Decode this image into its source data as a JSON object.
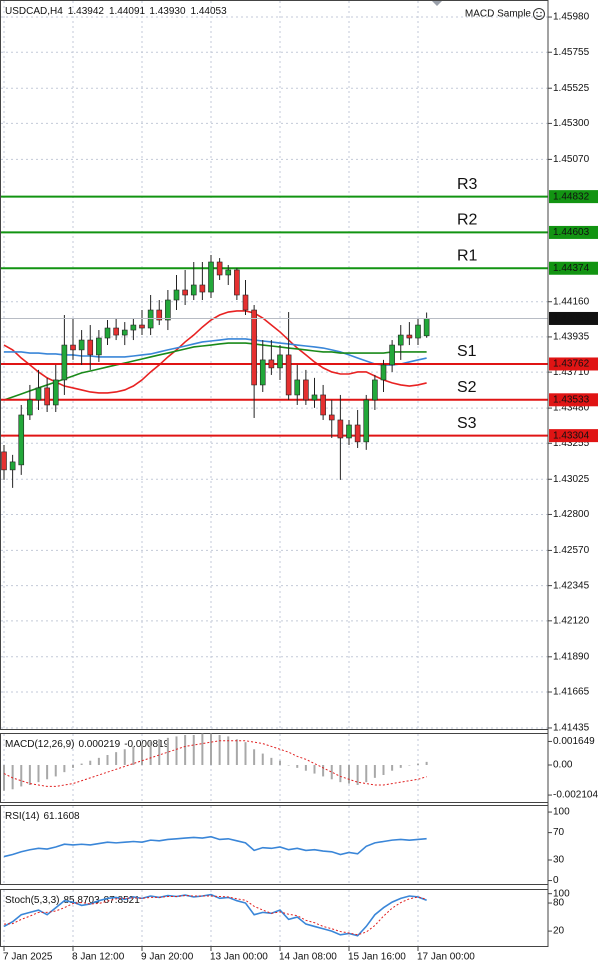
{
  "chart_data": [
    {
      "type": "candlestick",
      "title": "USDCAD,H4",
      "quote": [
        "1.43942",
        "1.44091",
        "1.43930",
        "1.44053"
      ],
      "indicator": "MACD Sample",
      "x": [
        "7 Jan 2025",
        null,
        null,
        null,
        null,
        null,
        null,
        null,
        "8 Jan 12:00",
        null,
        null,
        null,
        null,
        null,
        null,
        null,
        "9 Jan 20:00",
        null,
        null,
        null,
        null,
        null,
        null,
        null,
        "13 Jan 00:00",
        null,
        null,
        null,
        null,
        null,
        null,
        null,
        "14 Jan 08:00",
        null,
        null,
        null,
        null,
        null,
        null,
        null,
        "15 Jan 16:00",
        null,
        null,
        null,
        null,
        null,
        null,
        null,
        "17 Jan 00:00",
        null
      ],
      "open": [
        1.432,
        1.43085,
        1.43117,
        1.43436,
        1.43532,
        1.43609,
        1.435,
        1.4366,
        1.43883,
        1.43852,
        1.43915,
        1.4382,
        1.43928,
        1.43992,
        1.43947,
        1.43979,
        1.44011,
        1.43992,
        1.44107,
        1.44043,
        1.44171,
        1.44235,
        1.44203,
        1.44267,
        1.44222,
        1.44414,
        1.44331,
        1.44363,
        1.44203,
        1.44107,
        1.43628,
        1.43788,
        1.43737,
        1.4382,
        1.43564,
        1.4366,
        1.43532,
        1.43564,
        1.43436,
        1.43404,
        1.43289,
        1.43372,
        1.43264,
        1.43532,
        1.4366,
        1.43756,
        1.43883,
        1.43947,
        1.43928,
        1.43942
      ],
      "high": [
        1.43244,
        1.43181,
        1.435,
        1.43628,
        1.43724,
        1.43673,
        1.43756,
        1.44075,
        1.44056,
        1.43979,
        1.44011,
        1.43979,
        1.44043,
        1.44056,
        1.4403,
        1.44056,
        1.44107,
        1.44203,
        1.44171,
        1.44235,
        1.44331,
        1.44363,
        1.44414,
        1.44414,
        1.44459,
        1.44439,
        1.44395,
        1.44376,
        1.44299,
        1.44139,
        1.43915,
        1.43915,
        1.43883,
        1.44094,
        1.43756,
        1.43724,
        1.43673,
        1.43628,
        1.43532,
        1.43564,
        1.43404,
        1.43468,
        1.43564,
        1.43692,
        1.43788,
        1.43915,
        1.44011,
        1.4403,
        1.44056,
        1.44091
      ],
      "low": [
        1.43021,
        1.4297,
        1.43053,
        1.43404,
        1.43468,
        1.43455,
        1.43455,
        1.43564,
        1.43788,
        1.43756,
        1.43724,
        1.43775,
        1.43883,
        1.43915,
        1.43883,
        1.43915,
        1.43947,
        1.43947,
        1.44011,
        1.43979,
        1.44107,
        1.44139,
        1.44171,
        1.44171,
        1.44184,
        1.44299,
        1.44267,
        1.44171,
        1.44075,
        1.43417,
        1.43583,
        1.43692,
        1.4366,
        1.43532,
        1.435,
        1.435,
        1.43481,
        1.43404,
        1.43289,
        1.43021,
        1.43244,
        1.43225,
        1.43213,
        1.43468,
        1.43583,
        1.43711,
        1.43788,
        1.43883,
        1.43883,
        1.4393
      ],
      "close": [
        1.43085,
        1.43136,
        1.43436,
        1.43532,
        1.43609,
        1.435,
        1.4366,
        1.43883,
        1.43852,
        1.43915,
        1.4382,
        1.43928,
        1.43992,
        1.43947,
        1.43979,
        1.44011,
        1.43992,
        1.44107,
        1.44043,
        1.44171,
        1.44235,
        1.44203,
        1.44267,
        1.44222,
        1.44414,
        1.44331,
        1.44363,
        1.44203,
        1.44107,
        1.43628,
        1.43788,
        1.43737,
        1.4382,
        1.43564,
        1.4366,
        1.43532,
        1.43564,
        1.43436,
        1.43404,
        1.43289,
        1.43372,
        1.43264,
        1.43532,
        1.4366,
        1.43756,
        1.43883,
        1.43947,
        1.43928,
        1.44011,
        1.44053
      ],
      "up_color": "#22a83a",
      "down_color": "#e53030",
      "last_price_color": "#111111",
      "series": [
        {
          "color": "#e82222",
          "values": [
            1.43883,
            1.43852,
            1.438,
            1.43756,
            1.43711,
            1.43673,
            1.43647,
            1.43621,
            1.43609,
            1.43596,
            1.43583,
            1.43577,
            1.43577,
            1.43583,
            1.43596,
            1.43621,
            1.4366,
            1.43711,
            1.43756,
            1.43807,
            1.43852,
            1.43903,
            1.43947,
            1.43998,
            1.44043,
            1.44075,
            1.44094,
            1.44101,
            1.44101,
            1.44088,
            1.44056,
            1.44011,
            1.43967,
            1.43915,
            1.43864,
            1.4382,
            1.43775,
            1.43737,
            1.43711,
            1.43698,
            1.43698,
            1.43711,
            1.43711,
            1.43685,
            1.4366,
            1.43641,
            1.43628,
            1.43621,
            1.43628,
            1.43641
          ]
        },
        {
          "color": "#3a86d8",
          "values": [
            1.43839,
            1.43839,
            1.43839,
            1.43832,
            1.43832,
            1.43826,
            1.43826,
            1.4382,
            1.4382,
            1.43813,
            1.43813,
            1.43807,
            1.43807,
            1.43807,
            1.43807,
            1.43813,
            1.4382,
            1.43826,
            1.43839,
            1.43852,
            1.43864,
            1.43877,
            1.4389,
            1.43903,
            1.43909,
            1.43915,
            1.43922,
            1.43922,
            1.43922,
            1.43915,
            1.43909,
            1.43903,
            1.43896,
            1.4389,
            1.43883,
            1.43877,
            1.43871,
            1.43864,
            1.43852,
            1.43839,
            1.4382,
            1.438,
            1.43781,
            1.43762,
            1.43756,
            1.43756,
            1.43762,
            1.43775,
            1.43788,
            1.438
          ]
        },
        {
          "color": "#1a8a1a",
          "values": [
            1.43532,
            1.43551,
            1.4357,
            1.4359,
            1.43609,
            1.43628,
            1.43647,
            1.43666,
            1.43685,
            1.43705,
            1.43717,
            1.4373,
            1.43743,
            1.43756,
            1.43768,
            1.43781,
            1.43794,
            1.43807,
            1.4382,
            1.43832,
            1.43845,
            1.43858,
            1.43871,
            1.43877,
            1.43883,
            1.4389,
            1.43896,
            1.43896,
            1.43896,
            1.4389,
            1.43883,
            1.43877,
            1.43871,
            1.43864,
            1.43858,
            1.43852,
            1.43845,
            1.43839,
            1.43839,
            1.43832,
            1.43832,
            1.43832,
            1.43832,
            1.43832,
            1.43832,
            1.43839,
            1.43839,
            1.43839,
            1.43839,
            1.43839
          ]
        }
      ],
      "levels": [
        {
          "name": "R3",
          "value": 1.44832,
          "color": "#129412"
        },
        {
          "name": "R2",
          "value": 1.44603,
          "color": "#129412"
        },
        {
          "name": "R1",
          "value": 1.44374,
          "color": "#129412"
        },
        {
          "name": "S1",
          "value": 1.43762,
          "color": "#e01414"
        },
        {
          "name": "S2",
          "value": 1.43533,
          "color": "#e01414"
        },
        {
          "name": "S3",
          "value": 1.43304,
          "color": "#e01414"
        }
      ],
      "ylim": [
        1.41422,
        1.46089
      ],
      "yticks": [
        {
          "value": 1.4598,
          "label": "1.45980"
        },
        1.45755,
        1.45525,
        {
          "value": 1.453,
          "label": "1.45300"
        },
        {
          "value": 1.4507,
          "label": "1.45070"
        },
        {
          "value": 1.4416,
          "label": "1.44160"
        },
        1.43935,
        {
          "value": 1.4371,
          "label": "1.43710"
        },
        {
          "value": 1.4348,
          "label": "1.43480"
        },
        1.43255,
        1.43025,
        {
          "value": 1.428,
          "label": "1.42800"
        },
        {
          "value": 1.4257,
          "label": "1.42570"
        },
        1.42345,
        {
          "value": 1.4212,
          "label": "1.42120"
        },
        {
          "value": 1.4189,
          "label": "1.41890"
        },
        1.41665,
        1.41435
      ],
      "grid": true
    },
    {
      "type": "macd",
      "title": "MACD(12,26,9)",
      "series": [
        {
          "style": "histogram",
          "color": "#a8a8a8",
          "values": [
            -0.0018,
            -0.0017,
            -0.0015,
            -0.0014,
            -0.0012,
            -0.001,
            -0.0008,
            -0.0005,
            -0.0002,
            0.0001,
            0.0003,
            0.0005,
            0.0007,
            0.0009,
            0.0011,
            0.0013,
            0.0015,
            0.0017,
            0.0018,
            0.0019,
            0.002,
            0.0021,
            0.0021,
            0.0022,
            0.0022,
            0.0021,
            0.002,
            0.0018,
            0.0016,
            0.0011,
            0.0008,
            0.0005,
            0.0003,
            0,
            -0.0002,
            -0.0004,
            -0.0006,
            -0.0008,
            -0.001,
            -0.0012,
            -0.0013,
            -0.0014,
            -0.0012,
            -0.0009,
            -0.0007,
            -0.0004,
            -0.0002,
            0,
            0.0001,
            0.000219
          ]
        },
        {
          "style": "dotted",
          "color": "#e02020",
          "values": [
            -0.0006,
            -0.0009,
            -0.0011,
            -0.0013,
            -0.0014,
            -0.0015,
            -0.0015,
            -0.0014,
            -0.0013,
            -0.0011,
            -0.0009,
            -0.0007,
            -0.0005,
            -0.0003,
            -0.0001,
            0.0001,
            0.0003,
            0.0005,
            0.0007,
            0.0009,
            0.0011,
            0.0013,
            0.0014,
            0.0015,
            0.0016,
            0.0017,
            0.0017,
            0.0017,
            0.0017,
            0.0016,
            0.0015,
            0.0013,
            0.0011,
            0.0009,
            0.0006,
            0.0004,
            0.0001,
            -0.0002,
            -0.0005,
            -0.0008,
            -0.001,
            -0.0012,
            -0.0013,
            -0.0014,
            -0.0014,
            -0.0013,
            -0.0012,
            -0.0011,
            -0.001,
            -0.000819
          ]
        }
      ],
      "ylim": [
        -0.00266,
        0.00224
      ],
      "yticks": [
        0.001649,
        {
          "value": 0,
          "label": "0.00"
        },
        -0.002104
      ]
    },
    {
      "type": "line",
      "title": "RSI(14)",
      "series": [
        {
          "style": "solid",
          "color": "#3a86d8",
          "values": [
            35,
            38,
            42,
            45,
            47,
            46,
            49,
            53,
            52,
            53,
            52,
            54,
            56,
            55,
            56,
            57,
            56,
            59,
            58,
            60,
            61,
            62,
            63,
            62,
            64,
            60,
            61,
            58,
            55,
            44,
            48,
            47,
            49,
            45,
            47,
            44,
            45,
            43,
            42,
            38,
            41,
            39,
            50,
            55,
            57,
            59,
            60,
            59,
            60,
            61.1608
          ]
        }
      ],
      "ylim": [
        -6.5,
        110.3
      ],
      "yticks": [
        100,
        70,
        30,
        0
      ]
    },
    {
      "type": "line",
      "title": "Stoch(5,3,3)",
      "series": [
        {
          "style": "solid",
          "color": "#3a86d8",
          "values": [
            30,
            40,
            55,
            60,
            65,
            55,
            70,
            85,
            82,
            75,
            78,
            85,
            90,
            92,
            88,
            93,
            90,
            95,
            92,
            96,
            94,
            97,
            93,
            95,
            98,
            90,
            92,
            85,
            80,
            55,
            60,
            58,
            65,
            45,
            50,
            35,
            30,
            25,
            20,
            12,
            15,
            10,
            30,
            55,
            70,
            82,
            90,
            95,
            93,
            85.8703
          ]
        },
        {
          "style": "dotted",
          "color": "#e02020",
          "values": [
            35,
            36,
            45,
            52,
            60,
            60,
            63,
            70,
            79,
            81,
            78,
            79,
            84,
            89,
            90,
            91,
            90,
            92,
            92,
            94,
            94,
            96,
            95,
            95,
            95,
            94,
            93,
            89,
            86,
            73,
            65,
            58,
            61,
            56,
            53,
            43,
            38,
            30,
            25,
            19,
            16,
            12,
            18,
            32,
            52,
            69,
            81,
            89,
            93,
            87.8521
          ]
        }
      ],
      "ylim": [
        -14,
        110
      ],
      "yticks": [
        100,
        80,
        20
      ]
    }
  ]
}
